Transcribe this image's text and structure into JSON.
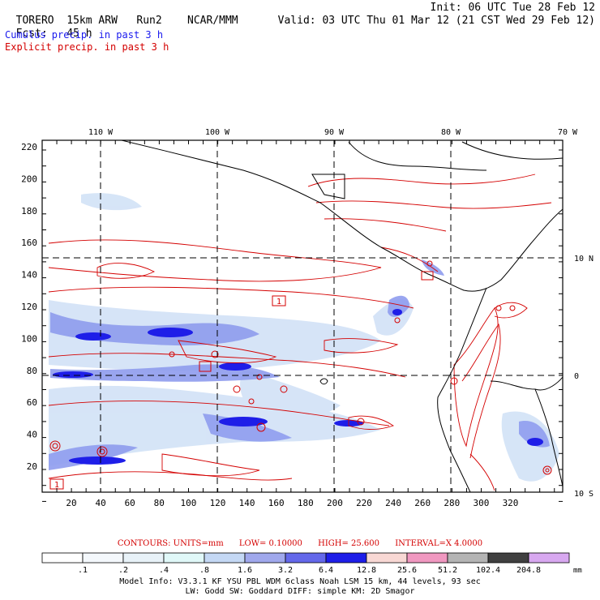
{
  "header": {
    "model": "TORERO",
    "resolution": "15km ARW",
    "run": "Run2",
    "org": "NCAR/MMM",
    "init": "Init: 06 UTC Tue 28 Feb 12",
    "fcst_label": "Fcst:",
    "fcst_value": "45 h",
    "valid": "Valid: 03 UTC Thu 01 Mar 12 (21 CST Wed 29 Feb 12)"
  },
  "field_titles": {
    "cumulus": "Cumulus precip. in past 3 h",
    "explicit": "Explicit precip. in past 3 h"
  },
  "colors": {
    "cumulus": "#1a1aee",
    "explicit": "#d40000"
  },
  "map": {
    "lon_labels": [
      "110 W",
      "100 W",
      "90 W",
      "80 W",
      "70 W"
    ],
    "lat_labels_right": [
      "10 N",
      "0",
      "10 S"
    ],
    "y_ticks": [
      "220",
      "200",
      "180",
      "160",
      "140",
      "120",
      "100",
      "80",
      "60",
      "40",
      "20"
    ],
    "x_ticks": [
      "20",
      "40",
      "60",
      "80",
      "100",
      "120",
      "140",
      "160",
      "180",
      "200",
      "220",
      "240",
      "260",
      "280",
      "300",
      "320"
    ],
    "box_labels": [
      "1",
      "1"
    ]
  },
  "contours": {
    "units": "CONTOURS:  UNITS=mm",
    "low": "LOW=  0.10000",
    "high": "HIGH=   25.600",
    "interval": "INTERVAL=X  4.0000"
  },
  "colorbar": {
    "labels": [
      ".1",
      ".2",
      ".4",
      ".8",
      "1.6",
      "3.2",
      "6.4",
      "12.8",
      "25.6",
      "51.2",
      "102.4",
      "204.8"
    ],
    "unit": "mm",
    "colors": [
      "#ffffff",
      "#f4f8fc",
      "#e8f2f8",
      "#e0f8f8",
      "#c4d8f4",
      "#a0a8ec",
      "#6468ea",
      "#1e1ee8",
      "#f8d8d4",
      "#f098c0",
      "#b4b4b4",
      "#404040",
      "#d8a8f0"
    ]
  },
  "model_info": {
    "line1": "Model Info: V3.3.1   KF     YSU PBL  WDM 6class  Noah LSM  15 km,   44 levels,    93 sec",
    "line2": "LW: Godd SW: Goddard DIFF: simple KM: 2D Smagor"
  }
}
